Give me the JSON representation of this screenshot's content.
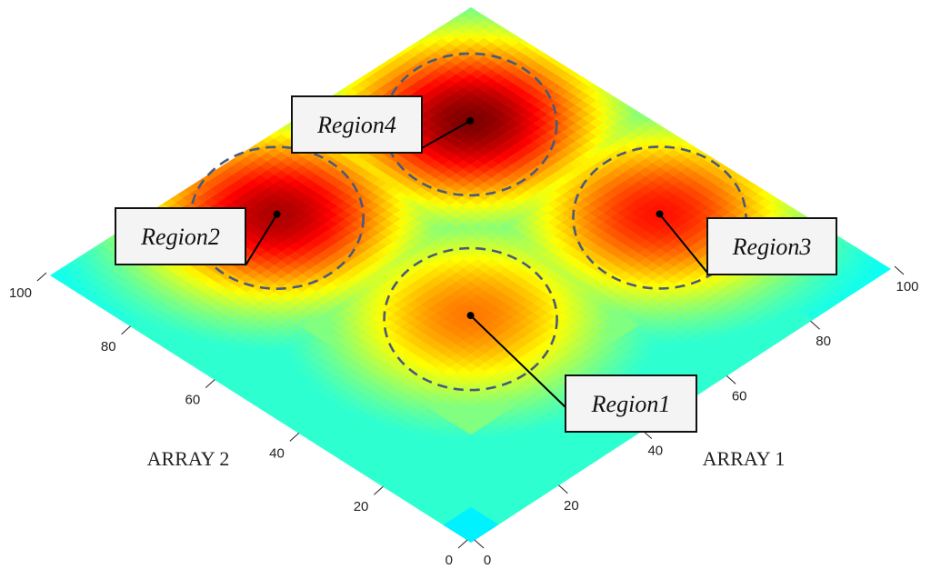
{
  "chart_data": {
    "type": "heatmap",
    "title": "",
    "x_axis": {
      "label": "ARRAY 1",
      "range": [
        0,
        100
      ],
      "ticks": [
        0,
        20,
        40,
        60,
        80,
        100
      ]
    },
    "y_axis": {
      "label": "ARRAY 2",
      "range": [
        0,
        100
      ],
      "ticks": [
        0,
        20,
        40,
        60,
        80,
        100
      ]
    },
    "colormap": "jet",
    "grid": false,
    "regions": [
      {
        "name": "Region1",
        "x": 42,
        "y": 42,
        "radius": 17,
        "peak": 0.62
      },
      {
        "name": "Region2",
        "x": 38,
        "y": 84,
        "radius": 17,
        "peak": 0.93
      },
      {
        "name": "Region3",
        "x": 83,
        "y": 38,
        "radius": 17,
        "peak": 0.78
      },
      {
        "name": "Region4",
        "x": 78,
        "y": 78,
        "radius": 17,
        "peak": 1.0
      }
    ]
  }
}
